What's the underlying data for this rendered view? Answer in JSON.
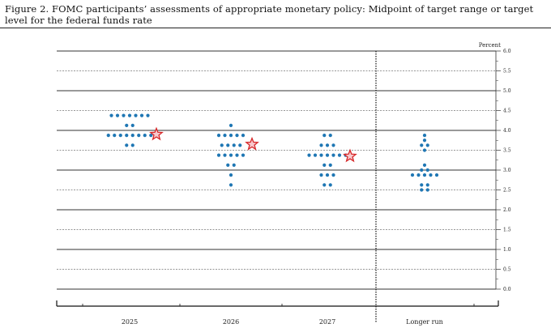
{
  "figure": {
    "title": "Figure 2.  FOMC participants’ assessments of appropriate monetary policy:  Midpoint of target range or target level for the federal funds rate"
  },
  "chart_data": {
    "type": "scatter",
    "title": "Figure 2.  FOMC participants’ assessments of appropriate monetary policy:  Midpoint of target range or target level for the federal funds rate",
    "unit_label": "Percent",
    "categories": [
      "2025",
      "2026",
      "2027",
      "Longer run"
    ],
    "ylim": [
      0.0,
      6.0
    ],
    "yticks": [
      "0.0",
      "0.5",
      "1.0",
      "1.5",
      "2.0",
      "2.5",
      "3.0",
      "3.5",
      "4.0",
      "4.5",
      "5.0",
      "5.5",
      "6.0"
    ],
    "grid": true,
    "dots_color": "#1f77b4",
    "median_marker_color": "#d62728",
    "dots": [
      {
        "category": "2025",
        "levels": [
          {
            "y": 4.375,
            "count": 7
          },
          {
            "y": 4.125,
            "count": 2
          },
          {
            "y": 3.875,
            "count": 8
          },
          {
            "y": 3.625,
            "count": 2
          }
        ]
      },
      {
        "category": "2026",
        "levels": [
          {
            "y": 4.125,
            "count": 1
          },
          {
            "y": 3.875,
            "count": 5
          },
          {
            "y": 3.625,
            "count": 4
          },
          {
            "y": 3.375,
            "count": 5
          },
          {
            "y": 3.125,
            "count": 2
          },
          {
            "y": 2.875,
            "count": 1
          },
          {
            "y": 2.625,
            "count": 1
          }
        ]
      },
      {
        "category": "2027",
        "levels": [
          {
            "y": 3.875,
            "count": 2
          },
          {
            "y": 3.625,
            "count": 3
          },
          {
            "y": 3.375,
            "count": 7
          },
          {
            "y": 3.125,
            "count": 2
          },
          {
            "y": 2.875,
            "count": 3
          },
          {
            "y": 2.625,
            "count": 2
          }
        ]
      },
      {
        "category": "Longer run",
        "levels": [
          {
            "y": 3.875,
            "count": 1
          },
          {
            "y": 3.75,
            "count": 1
          },
          {
            "y": 3.625,
            "count": 2
          },
          {
            "y": 3.5,
            "count": 1
          },
          {
            "y": 3.125,
            "count": 1
          },
          {
            "y": 3.0,
            "count": 2
          },
          {
            "y": 2.875,
            "count": 5
          },
          {
            "y": 2.625,
            "count": 2
          },
          {
            "y": 2.5,
            "count": 2
          }
        ]
      }
    ],
    "medians": [
      {
        "category": "2025",
        "y": 3.9
      },
      {
        "category": "2026",
        "y": 3.65
      },
      {
        "category": "2027",
        "y": 3.35
      }
    ]
  }
}
